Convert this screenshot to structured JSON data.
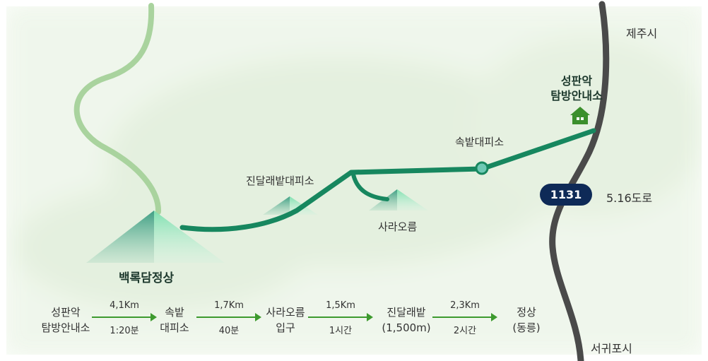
{
  "cities": {
    "north": "제주시",
    "south": "서귀포시"
  },
  "road": {
    "number": "1131",
    "name": "5.16도로"
  },
  "places": {
    "summit": "백록담정상",
    "center_line1": "성판악",
    "center_line2": "탐방안내소",
    "sokbat": "속밭대피소",
    "jindallae": "진달래밭대피소",
    "sara": "사라오름"
  },
  "route": {
    "stops": [
      {
        "line1": "성판악",
        "line2": "탐방안내소"
      },
      {
        "line1": "속밭",
        "line2": "대피소"
      },
      {
        "line1": "사라오름",
        "line2": "입구"
      },
      {
        "line1": "진달래밭",
        "line2": "(1,500m)"
      },
      {
        "line1": "정상",
        "line2": "(동릉)"
      }
    ],
    "segments": [
      {
        "distance": "4,1Km",
        "time": "1:20분"
      },
      {
        "distance": "1,7Km",
        "time": "40분"
      },
      {
        "distance": "1,5Km",
        "time": "1시간"
      },
      {
        "distance": "2,3Km",
        "time": "2시간"
      }
    ]
  },
  "colors": {
    "trail": "#17875f",
    "road": "#4a4a4a",
    "road_badge": "#0e2a57",
    "arrow": "#3d9a2e",
    "background_tint": "#e7f2e4"
  }
}
